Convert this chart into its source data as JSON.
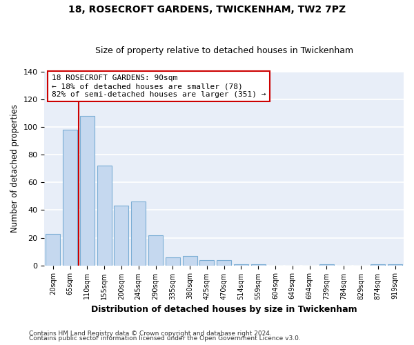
{
  "title": "18, ROSECROFT GARDENS, TWICKENHAM, TW2 7PZ",
  "subtitle": "Size of property relative to detached houses in Twickenham",
  "xlabel": "Distribution of detached houses by size in Twickenham",
  "ylabel": "Number of detached properties",
  "categories": [
    "20sqm",
    "65sqm",
    "110sqm",
    "155sqm",
    "200sqm",
    "245sqm",
    "290sqm",
    "335sqm",
    "380sqm",
    "425sqm",
    "470sqm",
    "514sqm",
    "559sqm",
    "604sqm",
    "649sqm",
    "694sqm",
    "739sqm",
    "784sqm",
    "829sqm",
    "874sqm",
    "919sqm"
  ],
  "values": [
    23,
    98,
    108,
    72,
    43,
    46,
    22,
    6,
    7,
    4,
    4,
    1,
    1,
    0,
    0,
    0,
    1,
    0,
    0,
    1,
    1
  ],
  "bar_color": "#c5d8ef",
  "bar_edge_color": "#7aadd4",
  "plot_bg_color": "#e8eef8",
  "fig_bg_color": "#ffffff",
  "grid_color": "#ffffff",
  "vline_x": 1.5,
  "vline_color": "#cc0000",
  "annotation_line1": "18 ROSECROFT GARDENS: 90sqm",
  "annotation_line2": "← 18% of detached houses are smaller (78)",
  "annotation_line3": "82% of semi-detached houses are larger (351) →",
  "annotation_box_color": "#ffffff",
  "annotation_box_edge": "#cc0000",
  "ylim": [
    0,
    140
  ],
  "yticks": [
    0,
    20,
    40,
    60,
    80,
    100,
    120,
    140
  ],
  "footer_line1": "Contains HM Land Registry data © Crown copyright and database right 2024.",
  "footer_line2": "Contains public sector information licensed under the Open Government Licence v3.0."
}
